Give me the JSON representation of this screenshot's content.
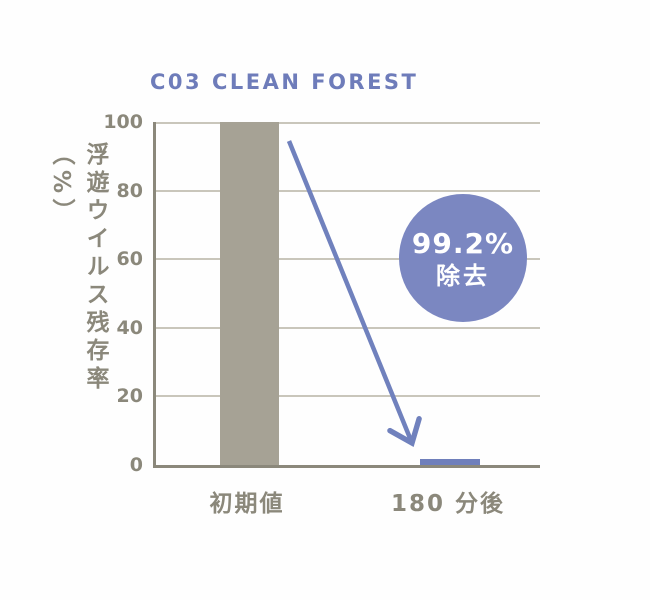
{
  "chart_data": {
    "type": "bar",
    "title": "C03 CLEAN FOREST",
    "categories": [
      "初期値",
      "180 分後"
    ],
    "values": [
      100,
      0.8
    ],
    "ylabel": "浮遊ウイルス残存率（%）",
    "xlabel": "",
    "ylim": [
      0,
      100
    ],
    "yticks": [
      0,
      20,
      40,
      60,
      80,
      100
    ],
    "grid": true,
    "legend": false,
    "bar_colors": [
      "#a6a295",
      "#6f7fbb"
    ],
    "annotations": {
      "circle_badge": {
        "line1": "99.2%",
        "line2": "除去",
        "color": "#7b87c1",
        "text_color": "#ffffff"
      },
      "arrow": {
        "color": "#7081bd"
      }
    }
  },
  "colors": {
    "title": "#6e7cba",
    "axis": "#8b887b",
    "grid": "#c9c6bb",
    "tick_text": "#8b887b",
    "background": "#fefefe"
  }
}
